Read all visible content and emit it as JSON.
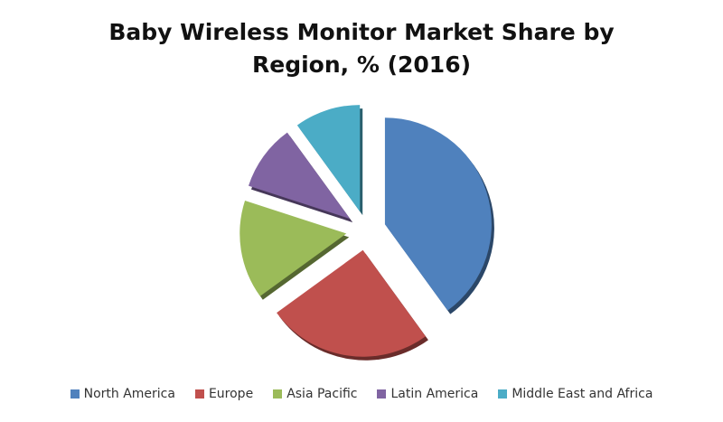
{
  "chart_data": {
    "type": "pie",
    "title": "Baby Wireless Monitor Market Share by Region, % (2016)",
    "title_line1": "Baby Wireless Monitor Market Share by",
    "title_line2": "Region, % (2016)",
    "categories": [
      "North America",
      "Europe",
      "Asia Pacific",
      "Latin America",
      "Middle East and Africa"
    ],
    "values": [
      40,
      25,
      15,
      10,
      10
    ],
    "colors": [
      "#4F81BD",
      "#C0504D",
      "#9BBB59",
      "#8064A2",
      "#4BACC6"
    ],
    "exploded": true,
    "legend_position": "bottom",
    "unit": "%"
  }
}
